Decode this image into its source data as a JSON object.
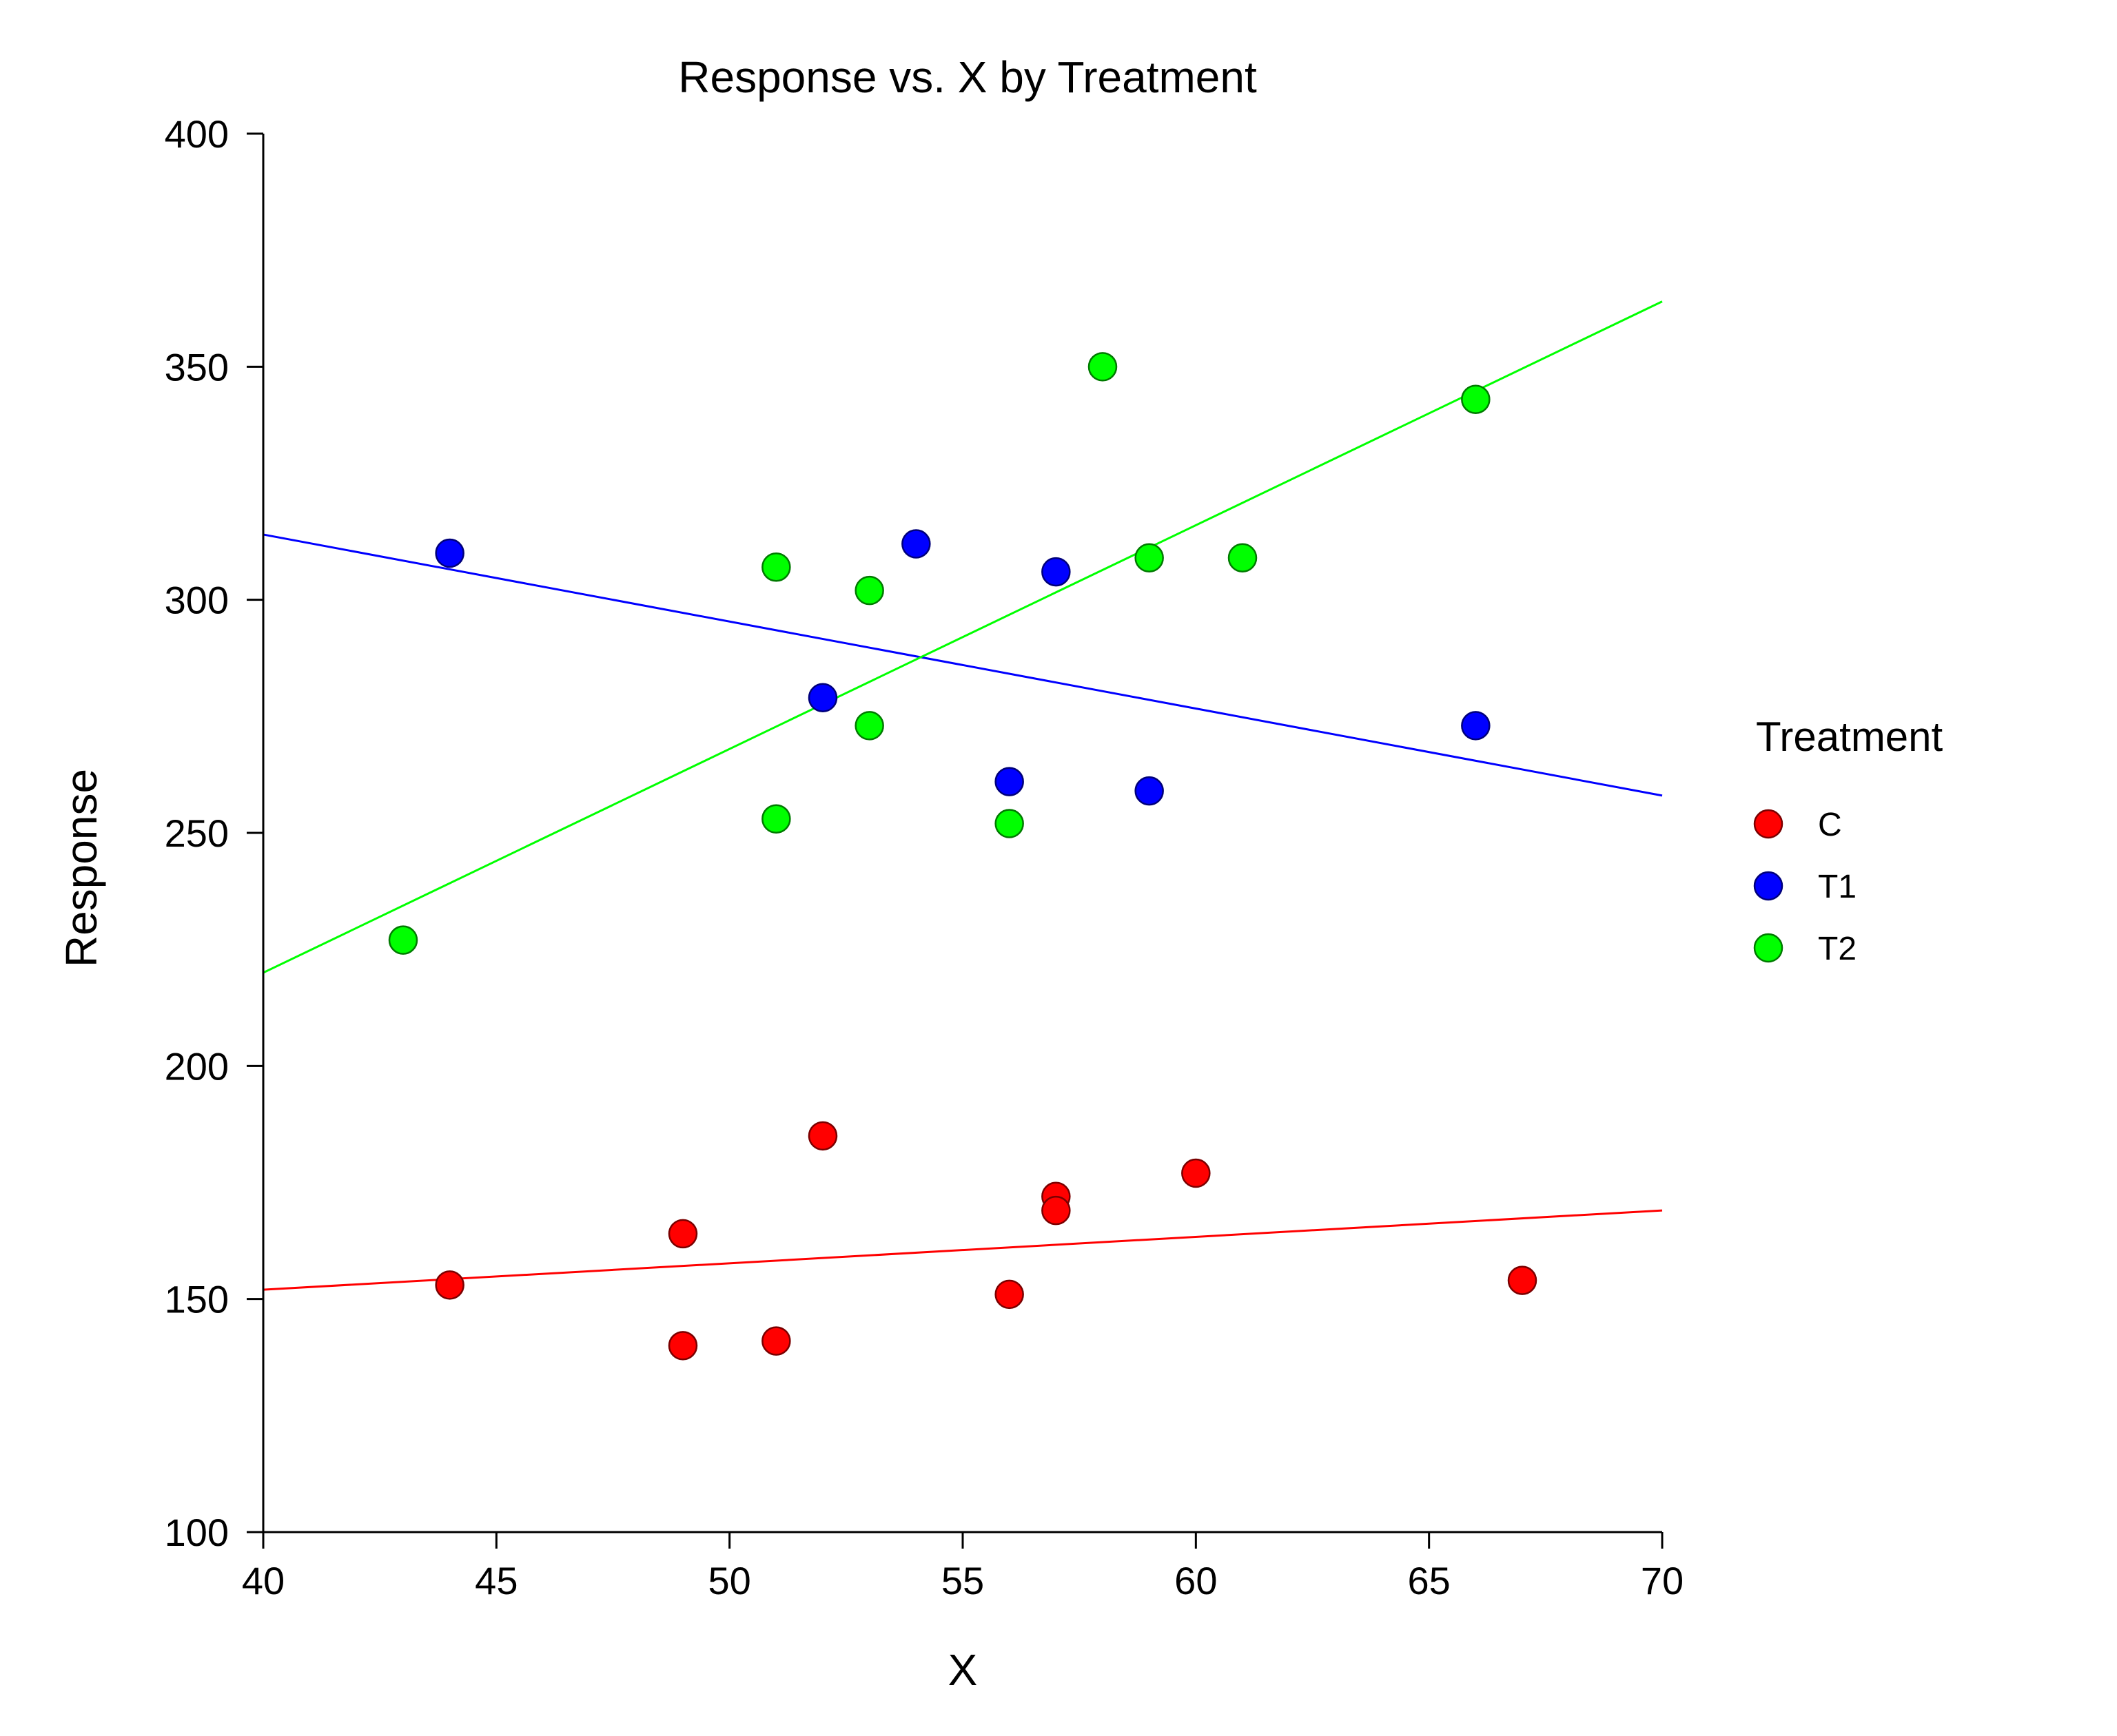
{
  "chart_data": {
    "type": "scatter",
    "title": "Response vs. X by Treatment",
    "xlabel": "X",
    "ylabel": "Response",
    "xlim": [
      40,
      70
    ],
    "ylim": [
      100,
      400
    ],
    "xticks": [
      40,
      45,
      50,
      55,
      60,
      65,
      70
    ],
    "yticks": [
      100,
      150,
      200,
      250,
      300,
      350,
      400
    ],
    "grid": false,
    "legend": {
      "title": "Treatment",
      "placement": "right"
    },
    "series": [
      {
        "name": "C",
        "color": "#ff0000",
        "edge_color": "#7a0000",
        "points": [
          {
            "x": 44,
            "y": 153
          },
          {
            "x": 49,
            "y": 164
          },
          {
            "x": 49,
            "y": 140
          },
          {
            "x": 51,
            "y": 141
          },
          {
            "x": 52,
            "y": 185
          },
          {
            "x": 56,
            "y": 151
          },
          {
            "x": 57,
            "y": 172
          },
          {
            "x": 57,
            "y": 169
          },
          {
            "x": 60,
            "y": 177
          },
          {
            "x": 67,
            "y": 154
          }
        ],
        "fit_line": {
          "x": [
            40,
            70
          ],
          "y": [
            152,
            169
          ]
        }
      },
      {
        "name": "T1",
        "color": "#0000ff",
        "edge_color": "#00007a",
        "points": [
          {
            "x": 44,
            "y": 310
          },
          {
            "x": 52,
            "y": 279
          },
          {
            "x": 54,
            "y": 312
          },
          {
            "x": 56,
            "y": 261
          },
          {
            "x": 57,
            "y": 306
          },
          {
            "x": 59,
            "y": 259
          },
          {
            "x": 66,
            "y": 273
          }
        ],
        "fit_line": {
          "x": [
            40,
            70
          ],
          "y": [
            314,
            258
          ]
        }
      },
      {
        "name": "T2",
        "color": "#00ff00",
        "edge_color": "#007a00",
        "points": [
          {
            "x": 43,
            "y": 227
          },
          {
            "x": 51,
            "y": 307
          },
          {
            "x": 51,
            "y": 253
          },
          {
            "x": 53,
            "y": 302
          },
          {
            "x": 53,
            "y": 273
          },
          {
            "x": 56,
            "y": 252
          },
          {
            "x": 58,
            "y": 350
          },
          {
            "x": 59,
            "y": 309
          },
          {
            "x": 61,
            "y": 309
          },
          {
            "x": 66,
            "y": 343
          }
        ],
        "fit_line": {
          "x": [
            40,
            70
          ],
          "y": [
            220,
            364
          ]
        }
      }
    ]
  }
}
